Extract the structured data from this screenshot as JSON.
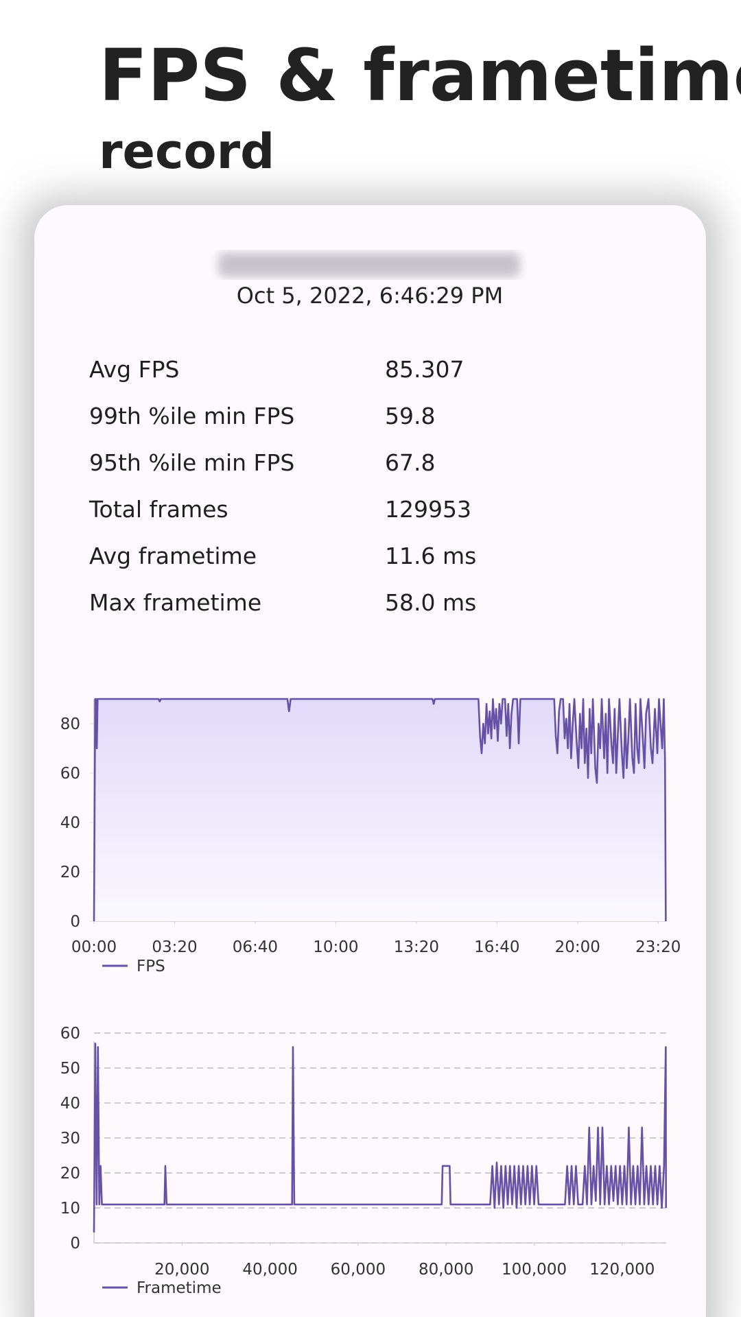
{
  "header": {
    "title": "FPS & frametime",
    "subtitle": "record"
  },
  "card": {
    "date": "Oct 5, 2022, 6:46:29 PM",
    "stats": [
      {
        "label": "Avg FPS",
        "value": "85.307"
      },
      {
        "label": "99th %ile min FPS",
        "value": "59.8"
      },
      {
        "label": "95th %ile min FPS",
        "value": "67.8"
      },
      {
        "label": "Total frames",
        "value": "129953"
      },
      {
        "label": "Avg frametime",
        "value": "11.6 ms"
      },
      {
        "label": "Max frametime",
        "value": "58.0 ms"
      }
    ]
  },
  "chart_data": [
    {
      "type": "line",
      "fill": true,
      "grid": false,
      "x": [
        0,
        3,
        5,
        7,
        9,
        20,
        160,
        163,
        166,
        480,
        484,
        488,
        840,
        843,
        846,
        954,
        958,
        962,
        966,
        970,
        974,
        978,
        982,
        986,
        990,
        994,
        998,
        1002,
        1006,
        1010,
        1014,
        1020,
        1024,
        1028,
        1032,
        1036,
        1040,
        1050,
        1054,
        1058,
        1142,
        1146,
        1150,
        1154,
        1158,
        1164,
        1168,
        1172,
        1176,
        1180,
        1184,
        1188,
        1192,
        1198,
        1202,
        1206,
        1210,
        1214,
        1218,
        1222,
        1226,
        1230,
        1234,
        1238,
        1244,
        1248,
        1252,
        1256,
        1260,
        1266,
        1270,
        1274,
        1278,
        1284,
        1288,
        1292,
        1296,
        1300,
        1304,
        1310,
        1314,
        1318,
        1322,
        1326,
        1330,
        1336,
        1340,
        1344,
        1348,
        1352,
        1356,
        1362,
        1366,
        1370,
        1376,
        1382,
        1386,
        1392,
        1398,
        1402,
        1406,
        1410,
        1414,
        1417,
        1419
      ],
      "series": [
        {
          "name": "FPS",
          "color": "#6552a6",
          "values": [
            0,
            90,
            90,
            70,
            90,
            90,
            90,
            89,
            90,
            90,
            85,
            90,
            90,
            88,
            90,
            90,
            75,
            68,
            80,
            72,
            88,
            76,
            85,
            74,
            90,
            78,
            86,
            73,
            88,
            80,
            90,
            90,
            75,
            88,
            70,
            84,
            90,
            90,
            72,
            90,
            90,
            75,
            68,
            85,
            90,
            90,
            74,
            82,
            70,
            88,
            66,
            80,
            90,
            72,
            62,
            84,
            70,
            90,
            64,
            78,
            58,
            86,
            68,
            90,
            62,
            56,
            80,
            70,
            90,
            66,
            84,
            60,
            90,
            72,
            64,
            86,
            60,
            76,
            90,
            68,
            58,
            82,
            62,
            74,
            90,
            66,
            60,
            88,
            70,
            64,
            90,
            74,
            62,
            84,
            90,
            70,
            64,
            86,
            68,
            90,
            80,
            70,
            90,
            65,
            0
          ]
        }
      ],
      "xlim": [
        0,
        1420
      ],
      "xticks": [
        {
          "value": 0,
          "label": "00:00"
        },
        {
          "value": 200,
          "label": "03:20"
        },
        {
          "value": 400,
          "label": "06:40"
        },
        {
          "value": 600,
          "label": "10:00"
        },
        {
          "value": 800,
          "label": "13:20"
        },
        {
          "value": 1000,
          "label": "16:40"
        },
        {
          "value": 1200,
          "label": "20:00"
        },
        {
          "value": 1400,
          "label": "23:20"
        }
      ],
      "ylim": [
        0,
        90
      ],
      "yticks": [
        0,
        20,
        40,
        60,
        80
      ]
    },
    {
      "type": "line",
      "fill": false,
      "grid": true,
      "x": [
        0,
        300,
        600,
        900,
        1200,
        1500,
        1800,
        16000,
        16200,
        16500,
        45000,
        45200,
        45500,
        79000,
        79200,
        80800,
        81000,
        90000,
        90500,
        91000,
        91500,
        92000,
        92500,
        93000,
        93500,
        94000,
        94500,
        95000,
        95500,
        96000,
        96500,
        97000,
        97500,
        98000,
        98500,
        99000,
        99500,
        100000,
        100500,
        101000,
        107000,
        107500,
        108000,
        108500,
        109000,
        109500,
        110000,
        111000,
        111500,
        112000,
        112500,
        113000,
        113500,
        114000,
        114500,
        115000,
        115500,
        116000,
        116500,
        117000,
        117500,
        118000,
        118500,
        119000,
        119500,
        120000,
        120500,
        121000,
        121500,
        122000,
        122500,
        123000,
        123500,
        124000,
        124500,
        125000,
        125500,
        126000,
        126500,
        127000,
        127500,
        128000,
        128500,
        129000,
        129500,
        129900,
        129953
      ],
      "series": [
        {
          "name": "Frametime",
          "color": "#6552a6",
          "values": [
            3,
            57,
            11,
            56,
            11,
            22,
            11,
            11,
            22,
            11,
            11,
            56,
            11,
            11,
            22,
            22,
            11,
            11,
            22,
            10,
            23,
            11,
            22,
            10,
            22,
            11,
            22,
            11,
            22,
            10,
            22,
            11,
            22,
            11,
            22,
            11,
            22,
            11,
            22,
            11,
            11,
            22,
            11,
            22,
            11,
            22,
            11,
            11,
            22,
            11,
            33,
            11,
            22,
            12,
            33,
            11,
            33,
            11,
            22,
            11,
            22,
            12,
            22,
            11,
            22,
            11,
            22,
            11,
            33,
            11,
            22,
            11,
            22,
            11,
            33,
            11,
            22,
            11,
            22,
            11,
            22,
            11,
            22,
            10,
            22,
            56,
            10
          ]
        }
      ],
      "xlim": [
        0,
        130000
      ],
      "xticks": [
        {
          "value": 20000,
          "label": "20,000"
        },
        {
          "value": 40000,
          "label": "40,000"
        },
        {
          "value": 60000,
          "label": "60,000"
        },
        {
          "value": 80000,
          "label": "80,000"
        },
        {
          "value": 100000,
          "label": "100,000"
        },
        {
          "value": 120000,
          "label": "120,000"
        }
      ],
      "ylim": [
        0,
        60
      ],
      "yticks": [
        0,
        10,
        20,
        30,
        40,
        50,
        60
      ]
    }
  ]
}
